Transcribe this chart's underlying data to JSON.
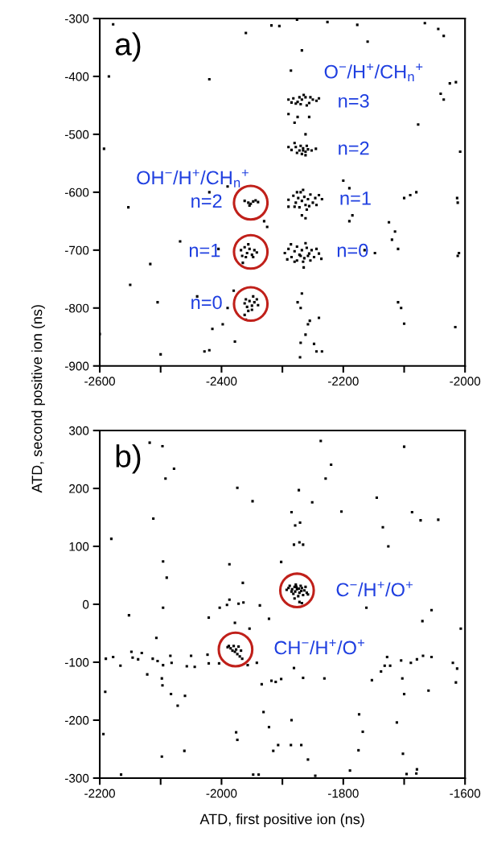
{
  "chart_data": [
    {
      "type": "scatter",
      "ylabel": "ATD, second positive ion (ns)",
      "xlim": [
        -2600,
        -2000
      ],
      "ylim": [
        -900,
        -300
      ],
      "xticks": [
        -2600,
        {
          "value": -2500,
          "label": null
        },
        -2400,
        {
          "value": -2300,
          "label": null
        },
        -2200,
        {
          "value": -2100,
          "label": null
        },
        -2000
      ],
      "yticks": [
        -900,
        -800,
        -700,
        -600,
        -500,
        -400,
        -300
      ],
      "grid": false,
      "legend": false,
      "annotations": [
        "a)",
        "O$^{−}$/H$^{+}$/CH$_{n}$$^{+}$",
        "n=3",
        "n=2",
        "n=1",
        "n=0",
        "OH$^{−}$/H$^{+}$/CH$_{n}$$^{+}$",
        "n=2",
        "n=1",
        "n=0"
      ],
      "series": [
        {
          "marker": "square",
          "color": "#000000",
          "x": [
            -2290,
            -2282,
            -2275,
            -2268,
            -2262,
            -2256,
            -2250,
            -2244,
            -2270,
            -2260,
            -2278,
            -2265,
            -2240,
            -2285,
            -2272,
            -2254,
            -2285,
            -2278,
            -2272,
            -2266,
            -2262,
            -2258,
            -2252,
            -2268,
            -2260,
            -2270,
            -2276,
            -2262,
            -2245,
            -2266,
            -2290,
            -2282,
            -2278,
            -2274,
            -2270,
            -2268,
            -2264,
            -2262,
            -2258,
            -2254,
            -2250,
            -2246,
            -2272,
            -2260,
            -2280,
            -2266,
            -2256,
            -2240,
            -2235,
            -2276,
            -2268,
            -2262,
            -2290,
            -2244,
            -2296,
            -2290,
            -2285,
            -2280,
            -2276,
            -2272,
            -2268,
            -2264,
            -2260,
            -2256,
            -2252,
            -2248,
            -2244,
            -2276,
            -2266,
            -2254,
            -2286,
            -2262,
            -2240,
            -2292,
            -2270,
            -2258,
            -2236,
            -2280,
            -2265,
            -2362,
            -2356,
            -2352,
            -2348,
            -2340,
            -2354,
            -2344,
            -2368,
            -2362,
            -2358,
            -2354,
            -2350,
            -2346,
            -2342,
            -2360,
            -2348,
            -2366,
            -2356,
            -2365,
            -2362,
            -2358,
            -2354,
            -2350,
            -2346,
            -2342,
            -2356,
            -2350,
            -2360,
            -2348,
            -2340,
            -2362,
            -2578,
            -2360,
            -2318,
            -2305,
            -2276,
            -2226,
            -2177,
            -2160,
            -2066,
            -2044,
            -2035,
            -2585,
            -2420,
            -2268,
            -2286,
            -2040,
            -2035,
            -2015,
            -2025,
            -2077,
            -2008,
            -2593,
            -2553,
            -2468,
            -2517,
            -2405,
            -2550,
            -2440,
            -2505,
            -2600,
            -2500,
            -2398,
            -2415,
            -2378,
            -2428,
            -2420,
            -2270,
            -2271,
            -2248,
            -2235,
            -2244,
            -2262,
            -2258,
            -2255,
            -2240,
            -2165,
            -2148,
            -2110,
            -2120,
            -2115,
            -2125,
            -2100,
            -2090,
            -2080,
            -2013,
            -2012,
            -2010,
            -2012,
            -2110,
            -2105,
            -2100,
            -2016,
            -2185,
            -2190,
            -2330,
            -2325,
            -2420,
            -2390,
            -2380,
            -2390,
            -2360,
            -2270,
            -2275,
            -2268,
            -2290,
            -2280,
            -2262,
            -2280,
            -2275,
            -2290,
            -2256,
            -2190,
            -2200
          ],
          "values": [
            -440,
            -438,
            -444,
            -440,
            -436,
            -446,
            -440,
            -442,
            -448,
            -450,
            -447,
            -432,
            -438,
            -445,
            -436,
            -436,
            -527,
            -522,
            -528,
            -524,
            -530,
            -526,
            -528,
            -534,
            -520,
            -520,
            -532,
            -536,
            -525,
            -528,
            -613,
            -606,
            -618,
            -610,
            -600,
            -615,
            -608,
            -622,
            -612,
            -604,
            -618,
            -610,
            -626,
            -630,
            -625,
            -596,
            -624,
            -605,
            -612,
            -600,
            -640,
            -645,
            -625,
            -622,
            -705,
            -698,
            -712,
            -702,
            -694,
            -708,
            -700,
            -714,
            -696,
            -706,
            -700,
            -712,
            -698,
            -718,
            -720,
            -718,
            -690,
            -688,
            -706,
            -716,
            -710,
            -710,
            -715,
            -720,
            -730,
            -615,
            -618,
            -620,
            -616,
            -617,
            -623,
            -614,
            -700,
            -695,
            -705,
            -698,
            -708,
            -700,
            -704,
            -712,
            -712,
            -710,
            -690,
            -722,
            -792,
            -798,
            -788,
            -796,
            -790,
            -785,
            -805,
            -803,
            -785,
            -780,
            -795,
            -812,
            -310,
            -325,
            -312,
            -313,
            -302,
            -306,
            -311,
            -340,
            -308,
            -318,
            -330,
            -400,
            -405,
            -355,
            -390,
            -430,
            -440,
            -410,
            -412,
            -483,
            -530,
            -525,
            -626,
            -685,
            -724,
            -698,
            -760,
            -780,
            -790,
            -845,
            -880,
            -828,
            -836,
            -858,
            -875,
            -873,
            -860,
            -885,
            -862,
            -875,
            -875,
            -846,
            -828,
            -822,
            -817,
            -700,
            -705,
            -698,
            -682,
            -668,
            -652,
            -610,
            -605,
            -600,
            -610,
            -618,
            -705,
            -710,
            -790,
            -800,
            -827,
            -833,
            -640,
            -650,
            -650,
            -660,
            -600,
            -590,
            -770,
            -800,
            -820,
            -800,
            -790,
            -775,
            -522,
            -515,
            -500,
            -480,
            -470,
            -465,
            -470,
            -593,
            -580
          ]
        },
        {
          "marker": "circle",
          "color": "#c0201a",
          "x": [
            -2352,
            -2352,
            -2352
          ],
          "values": [
            -618,
            -703,
            -793
          ]
        }
      ]
    },
    {
      "type": "scatter",
      "xlabel": "ATD, first positive ion (ns)",
      "xlim": [
        -2200,
        -1600
      ],
      "ylim": [
        -300,
        300
      ],
      "xticks": [
        -2200,
        {
          "value": -2100,
          "label": null
        },
        -2000,
        {
          "value": -1900,
          "label": null
        },
        -1800,
        {
          "value": -1700,
          "label": null
        },
        -1600
      ],
      "yticks": [
        -300,
        -200,
        -100,
        0,
        100,
        200,
        300
      ],
      "grid": false,
      "legend": false,
      "annotations": [
        "b)",
        "C$^{−}$/H$^{+}$/O$^{+}$",
        "CH$^{−}$/H$^{+}$/O$^{+}$"
      ],
      "series": [
        {
          "marker": "square",
          "color": "#000000",
          "x": [
            -1890,
            -1885,
            -1880,
            -1876,
            -1872,
            -1868,
            -1864,
            -1882,
            -1878,
            -1870,
            -1866,
            -1888,
            -1874,
            -1862,
            -1884,
            -1879,
            -1873,
            -1869,
            -1877,
            -1860,
            -1893,
            -1872,
            -1868,
            -1858,
            -1880,
            -1990,
            -1985,
            -1980,
            -1976,
            -1972,
            -1968,
            -1982,
            -1974,
            -1970,
            -1978,
            -1988,
            -1966,
            -2118,
            -2097,
            -2078,
            -2092,
            -2112,
            -2181,
            -1974,
            -1949,
            -1837,
            -1820,
            -1829,
            -1873,
            -1851,
            -1803,
            -1745,
            -1687,
            -1673,
            -1644,
            -1735,
            -1700,
            -1726,
            -1885,
            -1879,
            -1871,
            -1881,
            -1872,
            -1866,
            -1902,
            -2096,
            -2090,
            -1987,
            -1965,
            -1987,
            -2003,
            -1991,
            -1972,
            -1964,
            -1937,
            -2096,
            -2152,
            -2021,
            -1922,
            -1978,
            -1954,
            -1762,
            -1655,
            -1670,
            -1607,
            -2107,
            -2190,
            -2178,
            -2166,
            -2148,
            -2146,
            -2137,
            -2131,
            -2113,
            -2105,
            -2096,
            -2084,
            -2082,
            -2057,
            -2050,
            -2044,
            -2023,
            -2021,
            -2004,
            -1957,
            -1942,
            -1881,
            -1738,
            -1732,
            -1723,
            -1728,
            -1705,
            -1689,
            -1679,
            -1669,
            -1655,
            -1620,
            -1613,
            -1615,
            -1660,
            -1703,
            -1700,
            -1753,
            -1831,
            -1866,
            -1902,
            -1911,
            -1918,
            -1934,
            -2098,
            -2097,
            -2122,
            -2191,
            -2083,
            -2060,
            -2072,
            -1931,
            -1922,
            -1885,
            -1774,
            -1768,
            -1712,
            -1976,
            -1974,
            -2194,
            -2061,
            -2098,
            -1915,
            -1907,
            -1886,
            -1869,
            -1858,
            -1775,
            -1702,
            -1789,
            -1696,
            -1679,
            -1680,
            -1948,
            -1939,
            -2165,
            -1846
          ],
          "values": [
            28,
            22,
            30,
            26,
            20,
            28,
            24,
            18,
            34,
            32,
            16,
            32,
            14,
            30,
            26,
            22,
            27,
            23,
            30,
            20,
            25,
            4,
            2,
            17,
            10,
            -74,
            -76,
            -72,
            -78,
            -73,
            -80,
            -80,
            -86,
            -90,
            -82,
            -72,
            -94,
            279,
            273,
            234,
            217,
            148,
            113,
            201,
            178,
            282,
            241,
            217,
            197,
            176,
            160,
            184,
            159,
            145,
            146,
            133,
            272,
            100,
            159,
            136,
            141,
            103,
            107,
            103,
            73,
            74,
            46,
            69,
            37,
            8,
            -6,
            -1,
            1,
            3,
            -2,
            -6,
            -19,
            -23,
            -25,
            -32,
            -42,
            -6,
            -10,
            -29,
            -42,
            -58,
            -94,
            -91,
            -106,
            -82,
            -92,
            -95,
            -84,
            -94,
            -98,
            -105,
            -89,
            -101,
            -107,
            -89,
            -108,
            -87,
            -102,
            -102,
            -105,
            -101,
            -110,
            -116,
            -106,
            -106,
            -91,
            -97,
            -101,
            -95,
            -89,
            -91,
            -101,
            -111,
            -135,
            -149,
            -128,
            -155,
            -131,
            -128,
            -127,
            -129,
            -134,
            -132,
            -138,
            -128,
            -140,
            -121,
            -151,
            -155,
            -158,
            -175,
            -186,
            -212,
            -200,
            -190,
            -220,
            -204,
            -221,
            -234,
            -224,
            -253,
            -263,
            -253,
            -243,
            -243,
            -243,
            -268,
            -252,
            -258,
            -287,
            -293,
            -285,
            -292,
            -294,
            -294,
            -294,
            -296
          ]
        },
        {
          "marker": "circle",
          "color": "#c0201a",
          "x": [
            -1876,
            -1977
          ],
          "values": [
            24,
            -78
          ]
        }
      ]
    }
  ]
}
